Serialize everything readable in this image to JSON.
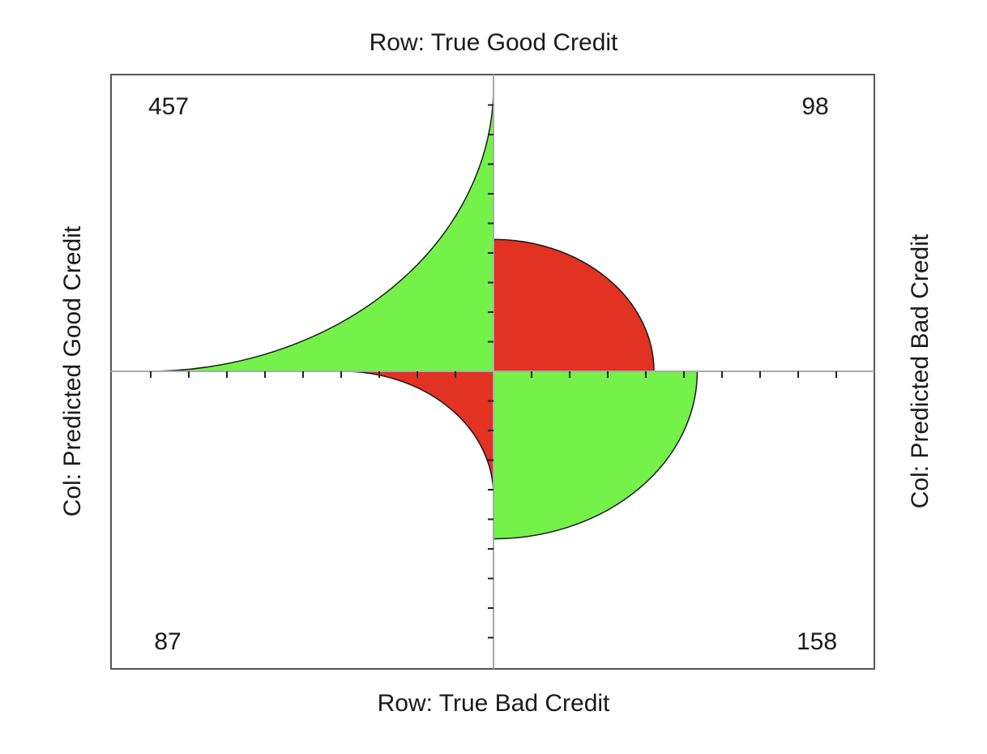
{
  "chart_data": {
    "type": "fourfold",
    "title_top": "Row: True Good Credit",
    "title_bottom": "Row: True Bad Credit",
    "label_left": "Col: Predicted Good Credit",
    "label_right": "Col: Predicted Bad Credit",
    "cells": [
      {
        "quadrant": "top-left",
        "row": "True Good Credit",
        "col": "Predicted Good Credit",
        "value": 457,
        "label": "457",
        "color": "#74f24a"
      },
      {
        "quadrant": "top-right",
        "row": "True Good Credit",
        "col": "Predicted Bad Credit",
        "value": 98,
        "label": "98",
        "color": "#e23222"
      },
      {
        "quadrant": "bottom-left",
        "row": "True Bad Credit",
        "col": "Predicted Good Credit",
        "value": 87,
        "label": "87",
        "color": "#e23222"
      },
      {
        "quadrant": "bottom-right",
        "row": "True Bad Credit",
        "col": "Predicted Bad Credit",
        "value": 158,
        "label": "158",
        "color": "#74f24a"
      }
    ],
    "colors": {
      "agree": "#74f24a",
      "disagree": "#e23222",
      "axis": "#aaaaaa",
      "frame": "#555555"
    }
  }
}
